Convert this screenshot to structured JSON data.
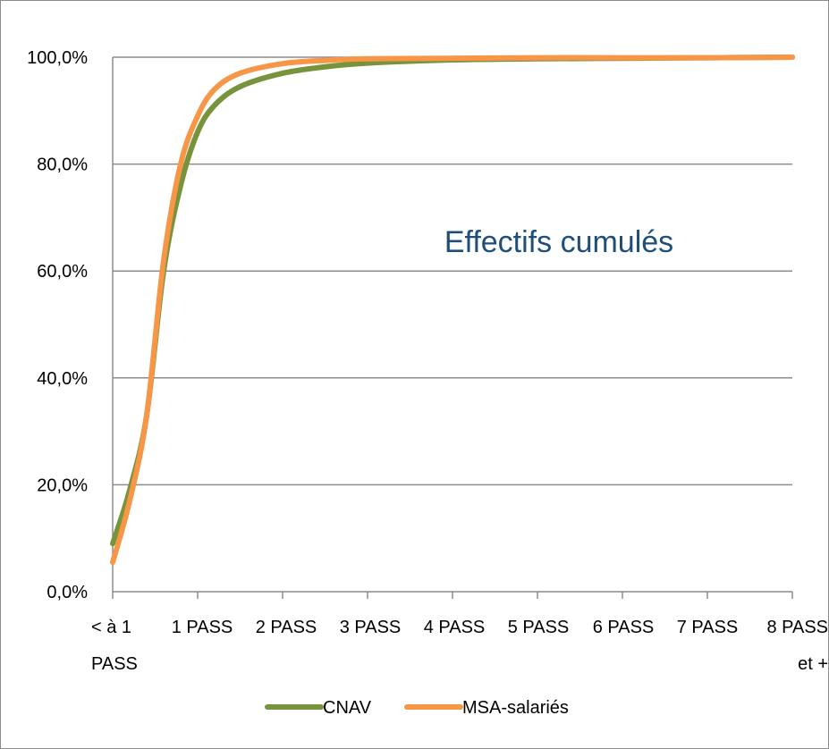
{
  "chart_data": {
    "type": "line",
    "categories": [
      "< à 1\nPASS",
      "1 PASS",
      "2 PASS",
      "3 PASS",
      "4 PASS",
      "5 PASS",
      "6 PASS",
      "7 PASS",
      "8 PASS\net +"
    ],
    "x_range": [
      0,
      8
    ],
    "ylim": [
      0,
      100
    ],
    "y_ticks": [
      "0,0%",
      "20,0%",
      "40,0%",
      "60,0%",
      "80,0%",
      "100,0%"
    ],
    "grid": true,
    "legend": "bottom",
    "annotation": "Effectifs cumulés",
    "series": [
      {
        "name": "CNAV",
        "color": "#77933c",
        "points": [
          [
            0.0,
            9
          ],
          [
            0.2,
            19
          ],
          [
            0.4,
            33
          ],
          [
            0.6,
            60
          ],
          [
            0.8,
            76
          ],
          [
            1.0,
            86
          ],
          [
            1.2,
            91
          ],
          [
            1.5,
            94.5
          ],
          [
            2.0,
            97
          ],
          [
            2.5,
            98.2
          ],
          [
            3.0,
            98.9
          ],
          [
            4.0,
            99.5
          ],
          [
            5.0,
            99.7
          ],
          [
            6.0,
            99.8
          ],
          [
            7.0,
            99.9
          ],
          [
            8.0,
            100
          ]
        ]
      },
      {
        "name": "MSA-salariés",
        "color": "#f79646",
        "points": [
          [
            0.0,
            5.5
          ],
          [
            0.2,
            17
          ],
          [
            0.4,
            33
          ],
          [
            0.6,
            62
          ],
          [
            0.8,
            80
          ],
          [
            1.0,
            89
          ],
          [
            1.2,
            94
          ],
          [
            1.5,
            97
          ],
          [
            2.0,
            98.8
          ],
          [
            2.5,
            99.4
          ],
          [
            3.0,
            99.7
          ],
          [
            4.0,
            99.8
          ],
          [
            5.0,
            99.9
          ],
          [
            6.0,
            99.9
          ],
          [
            7.0,
            99.9
          ],
          [
            8.0,
            100
          ]
        ]
      }
    ]
  }
}
